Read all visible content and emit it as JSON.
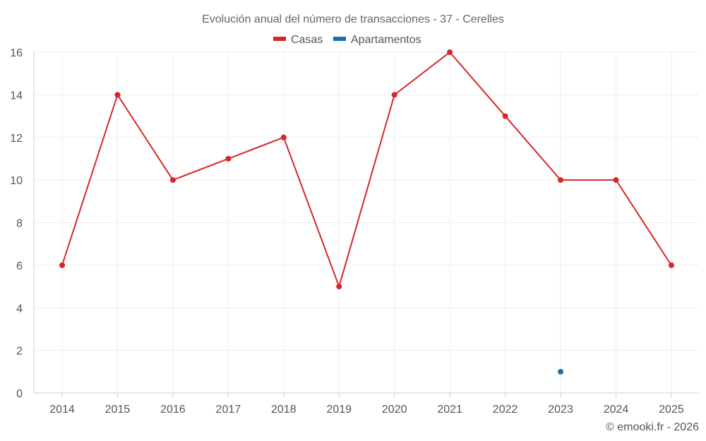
{
  "chart_data": {
    "type": "line",
    "title": "Evolución anual del número de transacciones - 37 - Cerelles",
    "categories": [
      "2014",
      "2015",
      "2016",
      "2017",
      "2018",
      "2019",
      "2020",
      "2021",
      "2022",
      "2023",
      "2024",
      "2025"
    ],
    "series": [
      {
        "name": "Casas",
        "color": "#d62728",
        "values": [
          6,
          14,
          10,
          11,
          12,
          5,
          14,
          16,
          13,
          10,
          10,
          6
        ]
      },
      {
        "name": "Apartamentos",
        "color": "#1f6fa8",
        "values": [
          null,
          null,
          null,
          null,
          null,
          null,
          null,
          null,
          null,
          1,
          null,
          null
        ]
      }
    ],
    "y_ticks": [
      "0",
      "2",
      "4",
      "6",
      "8",
      "10",
      "12",
      "14",
      "16"
    ],
    "ylim": [
      0,
      16
    ],
    "xlabel": "",
    "ylabel": "",
    "grid": true,
    "legend_position": "top-center"
  },
  "footer": {
    "credit": "© emooki.fr - 2026"
  }
}
